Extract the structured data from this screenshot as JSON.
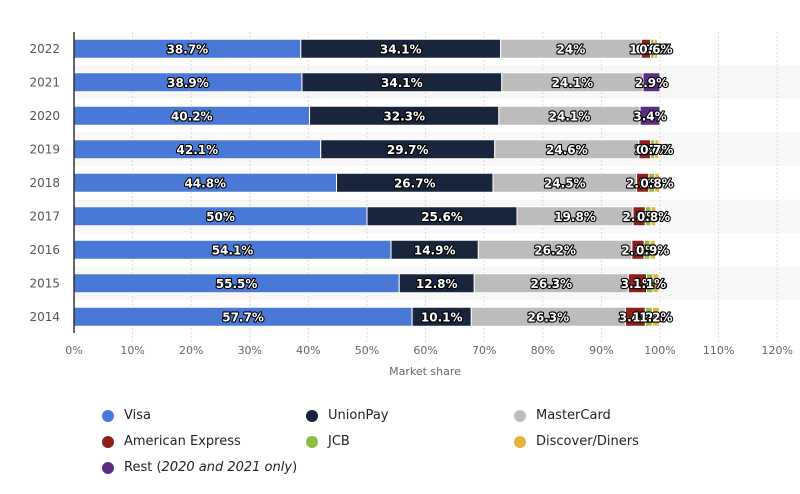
{
  "chart_data": {
    "type": "bar",
    "orientation": "horizontal",
    "stacked": true,
    "title": "",
    "xlabel": "Market share",
    "ylabel": "",
    "xlim": [
      0,
      120
    ],
    "xticks": [
      "0%",
      "10%",
      "20%",
      "30%",
      "40%",
      "50%",
      "60%",
      "70%",
      "80%",
      "90%",
      "100%",
      "110%",
      "120%"
    ],
    "categories": [
      "2022",
      "2021",
      "2020",
      "2019",
      "2018",
      "2017",
      "2016",
      "2015",
      "2014"
    ],
    "grid": true,
    "legend_position": "bottom",
    "series": [
      {
        "name": "Visa",
        "color": "#4a78d6",
        "values": [
          38.7,
          38.9,
          40.2,
          42.1,
          44.8,
          50,
          54.1,
          55.5,
          57.7
        ]
      },
      {
        "name": "UnionPay",
        "color": "#19253d",
        "values": [
          34.1,
          34.1,
          32.3,
          29.7,
          26.7,
          25.6,
          14.9,
          12.8,
          10.1
        ]
      },
      {
        "name": "MasterCard",
        "color": "#bcbcbc",
        "values": [
          24,
          24.1,
          24.1,
          24.6,
          24.5,
          19.8,
          26.2,
          26.3,
          26.3
        ]
      },
      {
        "name": "American Express",
        "color": "#8e1f1b",
        "values": [
          1.6,
          null,
          null,
          2.0,
          2.1,
          2.1,
          2.1,
          3.1,
          3.4
        ]
      },
      {
        "name": "JCB",
        "color": "#8fbc45",
        "values": [
          0.6,
          null,
          null,
          0.7,
          1.0,
          1.0,
          1.0,
          1.1,
          1.2
        ]
      },
      {
        "name": "Discover/Diners",
        "color": "#e2b53f",
        "values": [
          0.6,
          null,
          null,
          0.7,
          0.8,
          0.8,
          0.9,
          1.0,
          1.2
        ]
      },
      {
        "name": "Rest",
        "color": "#5a2d82",
        "values": [
          null,
          2.9,
          3.4,
          null,
          null,
          null,
          null,
          null,
          null
        ]
      }
    ],
    "value_suffix": "%"
  },
  "legend": [
    {
      "label": "Visa",
      "color": "#4a78d6"
    },
    {
      "label": "UnionPay",
      "color": "#19253d"
    },
    {
      "label": "MasterCard",
      "color": "#bcbcbc"
    },
    {
      "label": "American Express",
      "color": "#8e1f1b"
    },
    {
      "label": "JCB",
      "color": "#8fbc45"
    },
    {
      "label": "Discover/Diners",
      "color": "#e2b53f"
    },
    {
      "label": "Rest (",
      "italic": "2020 and 2021 only",
      "suffix": ")",
      "color": "#5a2d82"
    }
  ]
}
